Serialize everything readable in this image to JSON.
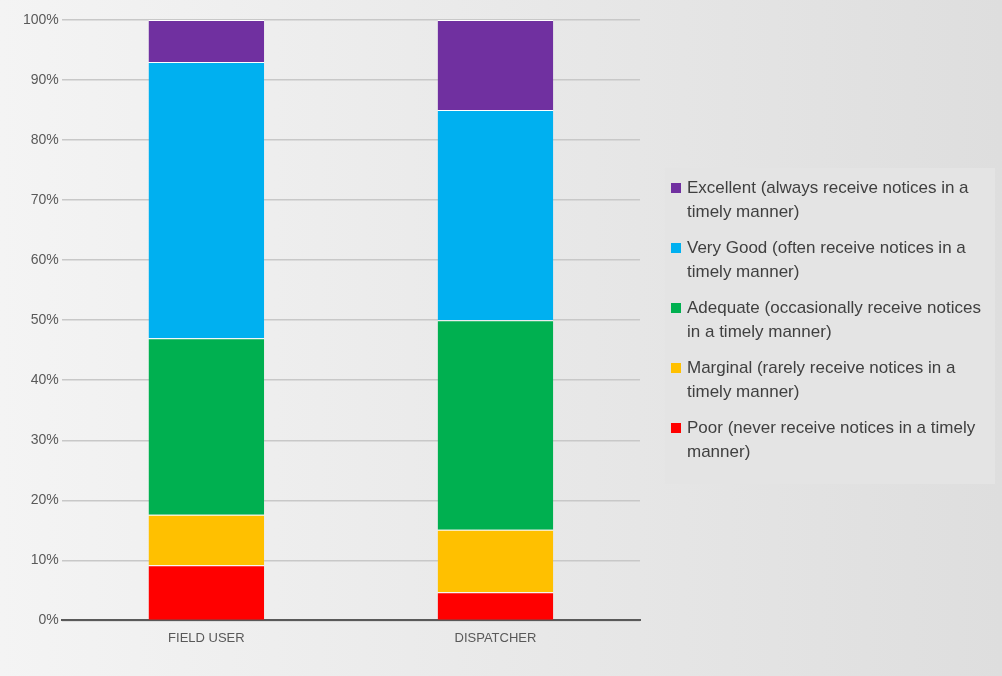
{
  "chart_data": {
    "type": "bar",
    "stacked": true,
    "categories": [
      "FIELD USER",
      "DISPATCHER"
    ],
    "series": [
      {
        "name": "Poor (never receive notices in a timely manner)",
        "color": "#ff0000",
        "values": [
          9.2,
          4.7
        ]
      },
      {
        "name": "Marginal (rarely receive notices in a timely manner)",
        "color": "#ffc000",
        "values": [
          8.4,
          10.4
        ]
      },
      {
        "name": "Adequate (occasionally receive notices in a timely manner)",
        "color": "#00b050",
        "values": [
          29.4,
          34.9
        ]
      },
      {
        "name": "Very Good (often receive notices in a timely manner)",
        "color": "#00b0f0",
        "values": [
          46.0,
          35.0
        ]
      },
      {
        "name": "Excellent (always receive notices in a timely manner)",
        "color": "#7030a0",
        "values": [
          7.0,
          15.0
        ]
      }
    ],
    "ylim": [
      0,
      100
    ],
    "yticks": [
      {
        "value": 0,
        "label": "0%"
      },
      {
        "value": 10,
        "label": "10%"
      },
      {
        "value": 20,
        "label": "20%"
      },
      {
        "value": 30,
        "label": "30%"
      },
      {
        "value": 40,
        "label": "40%"
      },
      {
        "value": 50,
        "label": "50%"
      },
      {
        "value": 60,
        "label": "60%"
      },
      {
        "value": 70,
        "label": "70%"
      },
      {
        "value": 80,
        "label": "80%"
      },
      {
        "value": 90,
        "label": "90%"
      },
      {
        "value": 100,
        "label": "100%"
      }
    ],
    "grid": "y",
    "legend": "right"
  }
}
